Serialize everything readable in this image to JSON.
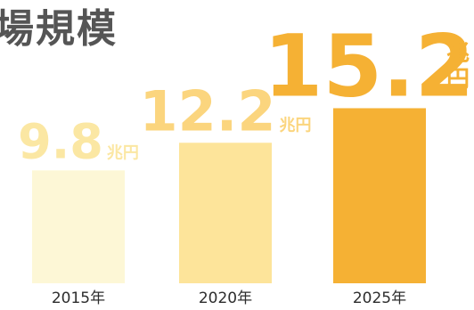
{
  "title_fragment": "場規模",
  "chart_data": {
    "type": "bar",
    "categories": [
      "2015年",
      "2020年",
      "2025年"
    ],
    "values": [
      9.8,
      12.2,
      15.2
    ],
    "value_labels": [
      "9.8",
      "12.2",
      "15.2"
    ],
    "unit": "兆円",
    "colors": [
      "#fdf7d6",
      "#fde49a",
      "#f5b134"
    ],
    "label_colors": [
      "#fbe7a3",
      "#fbd57e",
      "#f5b134"
    ]
  }
}
